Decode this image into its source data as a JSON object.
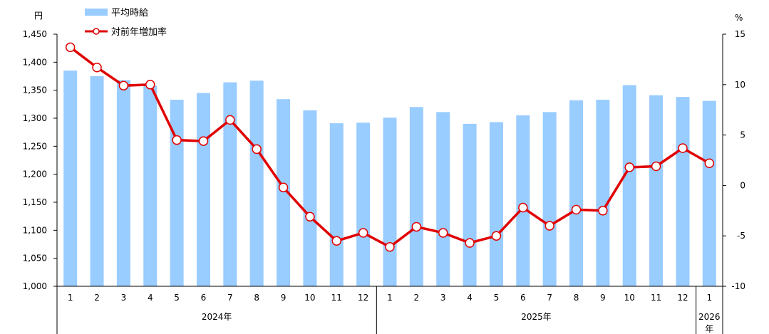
{
  "chart_data": {
    "type": "bar",
    "categories": [
      "1",
      "2",
      "3",
      "4",
      "5",
      "6",
      "7",
      "8",
      "9",
      "10",
      "11",
      "12",
      "1",
      "2",
      "3",
      "4",
      "5",
      "6",
      "7",
      "8",
      "9",
      "10",
      "11",
      "12",
      "1"
    ],
    "year_groups": [
      {
        "label": "2024年",
        "count": 12
      },
      {
        "label": "2025年",
        "count": 12
      },
      {
        "label": "2026",
        "label2": "年",
        "count": 1
      }
    ],
    "series": [
      {
        "name": "平均時給",
        "kind": "bar",
        "axis": "left",
        "color": "#99CCFF",
        "values": [
          1385,
          1375,
          1368,
          1358,
          1333,
          1345,
          1364,
          1367,
          1334,
          1314,
          1291,
          1292,
          1301,
          1320,
          1311,
          1290,
          1293,
          1305,
          1311,
          1332,
          1333,
          1359,
          1341,
          1338,
          1331
        ]
      },
      {
        "name": "対前年増加率",
        "kind": "line",
        "axis": "right",
        "color": "#E00000",
        "values": [
          13.7,
          11.7,
          9.9,
          10.0,
          4.5,
          4.4,
          6.5,
          3.6,
          -0.2,
          -3.1,
          -5.5,
          -4.7,
          -6.1,
          -4.1,
          -4.7,
          -5.7,
          -5.0,
          -2.2,
          -4.0,
          -2.4,
          -2.5,
          1.8,
          1.9,
          3.7,
          2.2
        ]
      }
    ],
    "y_left": {
      "unit": "円",
      "min": 1000,
      "max": 1450,
      "step": 50,
      "ticks": [
        "1,000",
        "1,050",
        "1,100",
        "1,150",
        "1,200",
        "1,250",
        "1,300",
        "1,350",
        "1,400",
        "1,450"
      ]
    },
    "y_right": {
      "unit": "%",
      "min": -10,
      "max": 15,
      "step": 5,
      "ticks": [
        "-10",
        "-5",
        "0",
        "5",
        "10",
        "15"
      ]
    },
    "legend_position": "top-left",
    "grid": false
  }
}
